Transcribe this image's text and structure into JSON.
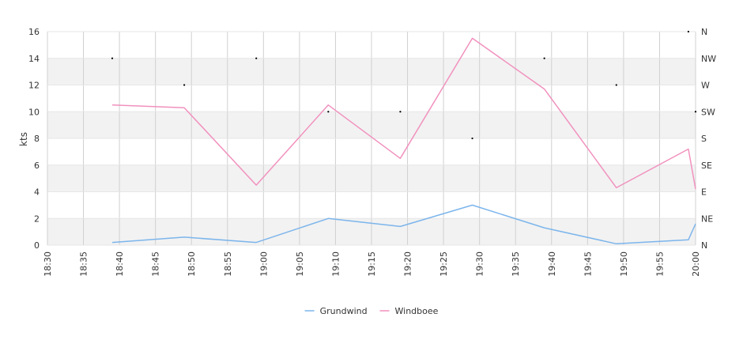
{
  "chart_data": {
    "type": "line",
    "ylabel": "kts",
    "ylim": [
      0,
      16
    ],
    "y_ticks": [
      "0",
      "2",
      "4",
      "6",
      "8",
      "10",
      "12",
      "14",
      "16"
    ],
    "x_range": [
      "18:30",
      "20:00"
    ],
    "x_ticks": [
      "18:30",
      "18:35",
      "18:40",
      "18:45",
      "18:50",
      "18:55",
      "19:00",
      "19:05",
      "19:10",
      "19:15",
      "19:20",
      "19:25",
      "19:30",
      "19:35",
      "19:40",
      "19:45",
      "19:50",
      "19:55",
      "20:00"
    ],
    "direction_axis_labels": [
      "N",
      "NE",
      "E",
      "SE",
      "S",
      "SW",
      "W",
      "NW",
      "N"
    ],
    "grid": true,
    "legend_position": "bottom-center",
    "series": [
      {
        "name": "Grundwind",
        "color": "#7cb5ec",
        "points": [
          {
            "x": "18:39",
            "y": 0.2
          },
          {
            "x": "18:49",
            "y": 0.6
          },
          {
            "x": "18:59",
            "y": 0.2
          },
          {
            "x": "19:09",
            "y": 2.0
          },
          {
            "x": "19:19",
            "y": 1.4
          },
          {
            "x": "19:29",
            "y": 3.0
          },
          {
            "x": "19:39",
            "y": 1.3
          },
          {
            "x": "19:49",
            "y": 0.1
          },
          {
            "x": "19:59",
            "y": 0.4
          },
          {
            "x": "20:00",
            "y": 1.6
          }
        ]
      },
      {
        "name": "Windboee",
        "color": "#f191be",
        "points": [
          {
            "x": "18:39",
            "y": 10.5
          },
          {
            "x": "18:49",
            "y": 10.3
          },
          {
            "x": "18:59",
            "y": 4.5
          },
          {
            "x": "19:09",
            "y": 10.5
          },
          {
            "x": "19:19",
            "y": 6.5
          },
          {
            "x": "19:29",
            "y": 15.5
          },
          {
            "x": "19:39",
            "y": 11.7
          },
          {
            "x": "19:49",
            "y": 4.3
          },
          {
            "x": "19:59",
            "y": 7.2
          },
          {
            "x": "20:00",
            "y": 4.2
          }
        ]
      }
    ],
    "direction_points": [
      {
        "x": "18:39",
        "dir": "NW"
      },
      {
        "x": "18:49",
        "dir": "W"
      },
      {
        "x": "18:59",
        "dir": "NW"
      },
      {
        "x": "19:09",
        "dir": "SW"
      },
      {
        "x": "19:19",
        "dir": "SW"
      },
      {
        "x": "19:29",
        "dir": "S"
      },
      {
        "x": "19:39",
        "dir": "NW"
      },
      {
        "x": "19:49",
        "dir": "W"
      },
      {
        "x": "19:59",
        "dir": "N"
      },
      {
        "x": "20:00",
        "dir": "SW"
      }
    ]
  }
}
